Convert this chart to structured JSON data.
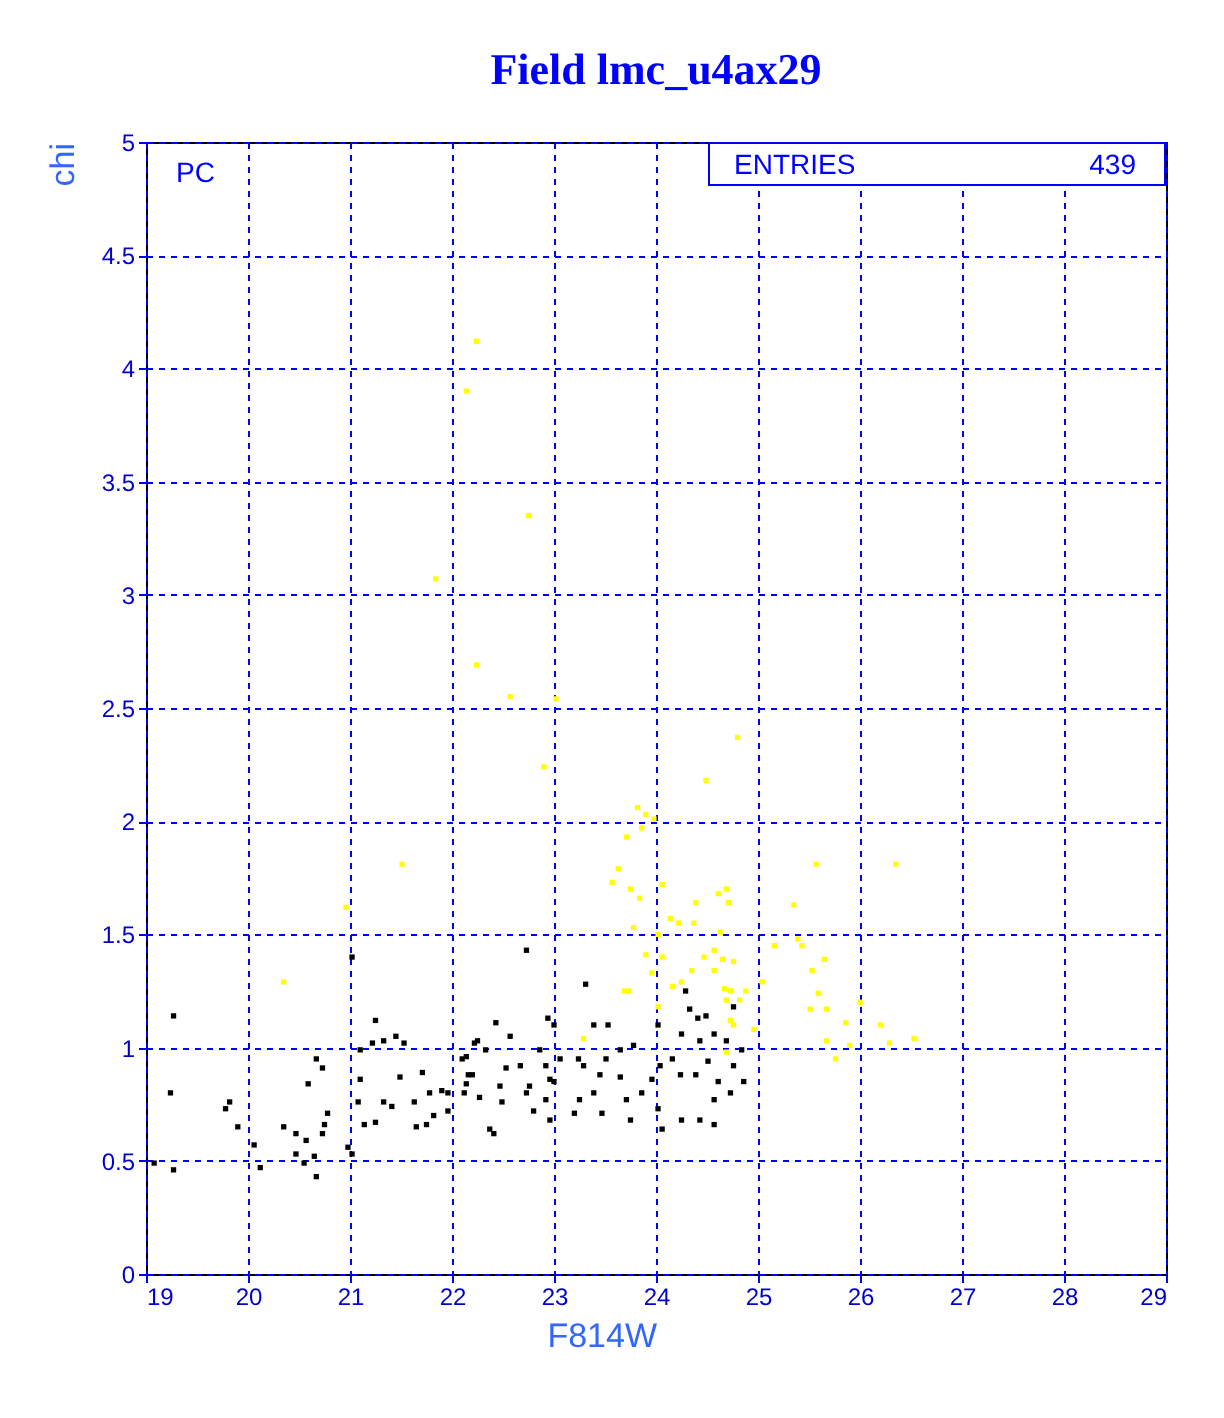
{
  "chart_data": {
    "type": "scatter",
    "title": "Field lmc_u4ax29",
    "xlabel": "F814W",
    "ylabel": "chi",
    "xlim": [
      19,
      29
    ],
    "ylim": [
      0,
      5
    ],
    "xticks": [
      19,
      20,
      21,
      22,
      23,
      24,
      25,
      26,
      27,
      28,
      29
    ],
    "yticks": [
      0,
      0.5,
      1,
      1.5,
      2,
      2.5,
      3,
      3.5,
      4,
      4.5,
      5
    ],
    "grid": true,
    "legend": false,
    "marker": "square",
    "annotations": [
      "PC",
      "ENTRIES",
      "439"
    ],
    "series": [
      {
        "color": "#000000",
        "x": [
          19.27,
          19.24,
          19.27,
          19.08,
          21.02,
          21.25,
          21.33,
          21.45,
          21.53,
          21.22,
          21.1,
          22.22,
          22.25,
          20.67,
          20.73,
          20.59,
          19.82,
          19.78,
          19.9,
          20.06,
          20.12,
          20.35,
          20.47,
          20.57,
          20.73,
          20.78,
          20.75,
          20.47,
          20.65,
          20.67,
          20.55,
          20.98,
          21.02,
          21.1,
          21.08,
          21.14,
          21.25,
          21.33,
          21.41,
          21.49,
          21.63,
          21.71,
          21.78,
          21.75,
          21.65,
          21.82,
          21.9,
          21.96,
          22.1,
          22.14,
          22.16,
          21.96,
          22.73,
          23.31,
          22.43,
          22.57,
          22.94,
          23.0,
          23.39,
          23.53,
          24.02,
          24.33,
          24.29,
          24.41,
          24.49,
          24.25,
          22.14,
          22.33,
          22.53,
          22.67,
          22.47,
          22.12,
          22.27,
          22.49,
          22.37,
          22.41,
          22.86,
          22.92,
          22.76,
          22.92,
          22.8,
          23.0,
          23.06,
          23.24,
          23.29,
          23.45,
          23.39,
          23.25,
          23.2,
          23.47,
          23.65,
          23.71,
          23.75,
          23.86,
          23.96,
          24.04,
          24.02,
          24.16,
          24.24,
          24.39,
          24.51,
          24.61,
          24.73,
          24.57,
          24.43,
          24.25,
          24.06,
          24.57,
          24.76,
          24.86,
          24.84,
          24.69,
          24.43,
          23.78,
          23.65,
          23.51,
          24.57,
          22.96,
          22.73,
          22.2,
          22.96,
          24.76
        ],
        "values": [
          1.14,
          0.8,
          0.46,
          0.49,
          1.4,
          1.12,
          1.03,
          1.05,
          1.02,
          1.02,
          0.99,
          1.02,
          1.03,
          0.95,
          0.91,
          0.84,
          0.76,
          0.73,
          0.65,
          0.57,
          0.47,
          0.65,
          0.62,
          0.59,
          0.62,
          0.71,
          0.66,
          0.53,
          0.52,
          0.43,
          0.49,
          0.56,
          0.53,
          0.86,
          0.76,
          0.66,
          0.67,
          0.76,
          0.74,
          0.87,
          0.76,
          0.89,
          0.8,
          0.66,
          0.65,
          0.7,
          0.81,
          0.8,
          0.95,
          0.84,
          0.88,
          0.72,
          1.43,
          1.28,
          1.11,
          1.05,
          1.13,
          1.1,
          1.1,
          1.1,
          1.1,
          1.17,
          1.25,
          1.13,
          1.14,
          1.06,
          0.96,
          0.99,
          0.91,
          0.92,
          0.83,
          0.8,
          0.78,
          0.76,
          0.64,
          0.62,
          0.99,
          0.92,
          0.83,
          0.77,
          0.72,
          0.85,
          0.95,
          0.95,
          0.92,
          0.88,
          0.8,
          0.77,
          0.71,
          0.71,
          0.87,
          0.77,
          0.68,
          0.8,
          0.86,
          0.92,
          0.73,
          0.95,
          0.88,
          0.88,
          0.94,
          0.85,
          0.8,
          0.77,
          0.68,
          0.68,
          0.64,
          0.66,
          0.92,
          0.85,
          0.99,
          1.03,
          1.03,
          1.01,
          0.99,
          0.95,
          1.06,
          0.68,
          0.8,
          0.88,
          0.86,
          1.18
        ]
      },
      {
        "color": "#ffff00",
        "x": [
          22.24,
          22.14,
          22.75,
          21.84,
          22.24,
          22.57,
          23.02,
          22.9,
          24.8,
          24.49,
          23.82,
          23.9,
          23.98,
          23.86,
          23.71,
          23.63,
          23.57,
          23.75,
          23.84,
          25.57,
          26.35,
          24.06,
          24.69,
          24.71,
          24.61,
          24.39,
          25.35,
          24.14,
          24.37,
          24.22,
          23.78,
          24.02,
          24.63,
          23.9,
          24.06,
          24.47,
          24.57,
          24.65,
          24.76,
          25.16,
          25.39,
          25.43,
          25.65,
          23.96,
          24.35,
          24.57,
          25.53,
          23.69,
          24.25,
          24.16,
          24.67,
          24.73,
          24.88,
          25.04,
          24.69,
          24.82,
          24.02,
          25.59,
          26.0,
          25.51,
          25.67,
          24.73,
          24.76,
          25.86,
          26.2,
          24.96,
          26.53,
          25.67,
          26.29,
          25.9,
          25.76,
          24.69,
          20.96,
          20.35,
          23.29,
          23.73,
          21.51
        ],
        "values": [
          4.12,
          3.9,
          3.35,
          3.07,
          2.69,
          2.55,
          2.54,
          2.24,
          2.37,
          2.18,
          2.06,
          2.03,
          2.01,
          1.97,
          1.93,
          1.79,
          1.73,
          1.7,
          1.66,
          1.81,
          1.81,
          1.72,
          1.7,
          1.64,
          1.68,
          1.64,
          1.63,
          1.57,
          1.55,
          1.55,
          1.53,
          1.5,
          1.51,
          1.41,
          1.4,
          1.4,
          1.43,
          1.39,
          1.38,
          1.45,
          1.48,
          1.45,
          1.39,
          1.33,
          1.34,
          1.34,
          1.34,
          1.25,
          1.29,
          1.27,
          1.26,
          1.25,
          1.25,
          1.29,
          1.21,
          1.21,
          1.18,
          1.24,
          1.2,
          1.17,
          1.17,
          1.12,
          1.1,
          1.11,
          1.1,
          1.08,
          1.04,
          1.03,
          1.02,
          1.01,
          0.95,
          0.98,
          1.62,
          1.29,
          1.04,
          1.25,
          1.81
        ]
      }
    ]
  }
}
